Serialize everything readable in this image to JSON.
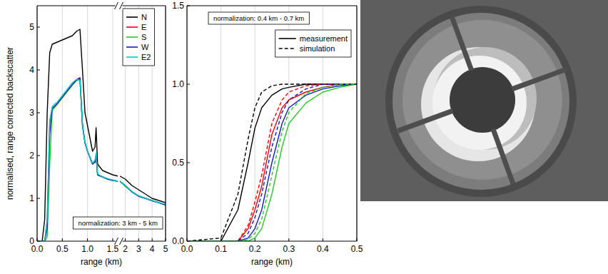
{
  "chart_data": [
    {
      "type": "line",
      "ylabel": "normalised, range corrected backscatter",
      "x": [
        0,
        0.1,
        0.15,
        0.2,
        0.25,
        0.3,
        0.4,
        0.5,
        0.6,
        0.7,
        0.78,
        0.85,
        0.9,
        0.95,
        1.0,
        1.1,
        1.15,
        1.17,
        1.2,
        1.3,
        1.4,
        1.5,
        1.6
      ],
      "xlim": [
        0,
        1.6
      ],
      "xticks": [
        {
          "value": 0,
          "label": "0.0"
        },
        {
          "value": 0.5,
          "label": "0.5"
        },
        {
          "value": 1,
          "label": "1.0"
        },
        {
          "value": 1.5,
          "label": "1.5"
        }
      ],
      "ylim": [
        0,
        5.5
      ],
      "yticks": [
        0,
        1,
        2,
        3,
        4,
        5
      ],
      "grid": "x",
      "series": [
        {
          "color": "#000000",
          "values": [
            0,
            0,
            0.5,
            3.0,
            4.4,
            4.6,
            4.65,
            4.7,
            4.75,
            4.8,
            4.9,
            4.95,
            4.0,
            3.0,
            2.7,
            2.1,
            2.2,
            2.65,
            1.8,
            1.65,
            1.6,
            1.55,
            1.52
          ]
        },
        {
          "color": "#ff0000",
          "values": [
            0,
            0,
            0,
            0.5,
            2.8,
            3.1,
            3.2,
            3.35,
            3.5,
            3.65,
            3.75,
            3.8,
            2.7,
            2.3,
            2.1,
            1.8,
            1.85,
            2.0,
            1.55,
            1.5,
            1.45,
            1.42,
            1.4
          ]
        },
        {
          "color": "#22cc22",
          "values": [
            0,
            0,
            0,
            0.1,
            1.8,
            3.05,
            3.2,
            3.35,
            3.5,
            3.65,
            3.75,
            3.78,
            2.7,
            2.3,
            2.1,
            1.8,
            1.85,
            2.0,
            1.55,
            1.5,
            1.45,
            1.42,
            1.4
          ]
        },
        {
          "color": "#1a1acc",
          "values": [
            0,
            0,
            0,
            0.3,
            2.5,
            3.1,
            3.22,
            3.37,
            3.52,
            3.66,
            3.77,
            3.82,
            2.72,
            2.3,
            2.1,
            1.8,
            1.85,
            2.0,
            1.55,
            1.5,
            1.45,
            1.42,
            1.4
          ]
        },
        {
          "color": "#00cccc",
          "values": [
            0,
            0,
            0,
            0.5,
            2.8,
            3.15,
            3.25,
            3.4,
            3.55,
            3.7,
            3.78,
            3.75,
            2.75,
            2.32,
            2.1,
            1.82,
            1.9,
            2.05,
            1.57,
            1.5,
            1.46,
            1.43,
            1.4
          ]
        }
      ]
    },
    {
      "type": "line",
      "xlabel": "range (km)",
      "annotation": "normalization: 3 km - 5 km",
      "x": [
        1.6,
        2,
        2.5,
        3,
        3.5,
        4,
        4.5,
        5
      ],
      "xlim": [
        1.6,
        5
      ],
      "xticks": [
        2,
        3,
        4,
        5
      ],
      "ylim": [
        0,
        5.5
      ],
      "tick_labels": "x",
      "grid": "x",
      "legend": "top-left",
      "series": [
        {
          "name": "N",
          "color": "#000000",
          "values": [
            1.52,
            1.45,
            1.3,
            1.2,
            1.1,
            1.0,
            0.95,
            0.9
          ]
        },
        {
          "name": "E",
          "color": "#ff0000",
          "values": [
            1.4,
            1.3,
            1.15,
            1.05,
            1.0,
            0.95,
            0.9,
            0.85
          ]
        },
        {
          "name": "S",
          "color": "#22cc22",
          "values": [
            1.4,
            1.28,
            1.15,
            1.05,
            1.0,
            0.95,
            0.9,
            0.85
          ]
        },
        {
          "name": "W",
          "color": "#1a1acc",
          "values": [
            1.4,
            1.3,
            1.15,
            1.05,
            1.0,
            0.94,
            0.9,
            0.84
          ]
        },
        {
          "name": "E2",
          "color": "#00cccc",
          "values": [
            1.4,
            1.3,
            1.16,
            1.06,
            1.0,
            0.95,
            0.9,
            0.86
          ]
        }
      ]
    },
    {
      "type": "line",
      "xlabel": "range (km)",
      "annotation": "normalization: 0.4 km - 0.7 km",
      "x": [
        0,
        0.1,
        0.15,
        0.18,
        0.2,
        0.22,
        0.25,
        0.28,
        0.3,
        0.35,
        0.4,
        0.45,
        0.5
      ],
      "xlim": [
        0,
        0.5
      ],
      "xticks": [
        {
          "value": 0,
          "label": "0.0"
        },
        {
          "value": 0.1,
          "label": "0.1"
        },
        {
          "value": 0.2,
          "label": "0.2"
        },
        {
          "value": 0.3,
          "label": "0.3"
        },
        {
          "value": 0.4,
          "label": "0.4"
        },
        {
          "value": 0.5,
          "label": "0.5"
        }
      ],
      "ylim": [
        0,
        1.5
      ],
      "yticks": [
        {
          "value": 0,
          "label": "0.0"
        },
        {
          "value": 0.5,
          "label": "0.5"
        },
        {
          "value": 1,
          "label": "1.0"
        },
        {
          "value": 1.5,
          "label": "1.5"
        }
      ],
      "grid": "x",
      "legend": "top-right",
      "series": [
        {
          "name": "measurement",
          "line_style": "solid",
          "color": "#000000",
          "values": [
            0,
            0,
            0.2,
            0.5,
            0.72,
            0.85,
            0.93,
            0.97,
            0.98,
            1.0,
            1.0,
            1.0,
            1.0
          ]
        },
        {
          "name": "measurement",
          "line_style": "solid",
          "color": "#ff0000",
          "values": [
            0,
            0,
            0,
            0.08,
            0.2,
            0.35,
            0.68,
            0.85,
            0.9,
            0.95,
            0.98,
            1.0,
            1.0
          ]
        },
        {
          "name": "measurement",
          "line_style": "solid",
          "color": "#1a1acc",
          "values": [
            0,
            0,
            0,
            0.02,
            0.08,
            0.2,
            0.5,
            0.75,
            0.85,
            0.93,
            0.97,
            0.99,
            1.0
          ]
        },
        {
          "name": "measurement",
          "line_style": "solid",
          "color": "#22cc22",
          "values": [
            0,
            0,
            0,
            0,
            0.02,
            0.08,
            0.3,
            0.6,
            0.75,
            0.88,
            0.95,
            0.98,
            1.0
          ]
        },
        {
          "name": "simulation",
          "line_style": "dashed",
          "color": "#000000",
          "values": [
            0,
            0.02,
            0.3,
            0.65,
            0.85,
            0.95,
            0.99,
            1.0,
            1.0,
            1.0,
            1.0,
            1.0,
            1.0
          ]
        },
        {
          "name": "simulation",
          "line_style": "dashed",
          "color": "#ff0000",
          "values": [
            0,
            0,
            0,
            0.1,
            0.25,
            0.42,
            0.75,
            0.9,
            0.95,
            0.99,
            1.0,
            1.0,
            1.0
          ]
        },
        {
          "name": "simulation",
          "line_style": "dashed",
          "color": "#1a1acc",
          "values": [
            0,
            0,
            0,
            0.05,
            0.15,
            0.3,
            0.6,
            0.82,
            0.9,
            0.97,
            1.0,
            1.0,
            1.0
          ]
        },
        {
          "name": "simulation",
          "line_style": "dashed",
          "color": "#22cc22",
          "values": [
            0,
            0,
            0,
            0.01,
            0.05,
            0.14,
            0.42,
            0.7,
            0.82,
            0.94,
            0.98,
            1.0,
            1.0
          ]
        }
      ]
    }
  ]
}
